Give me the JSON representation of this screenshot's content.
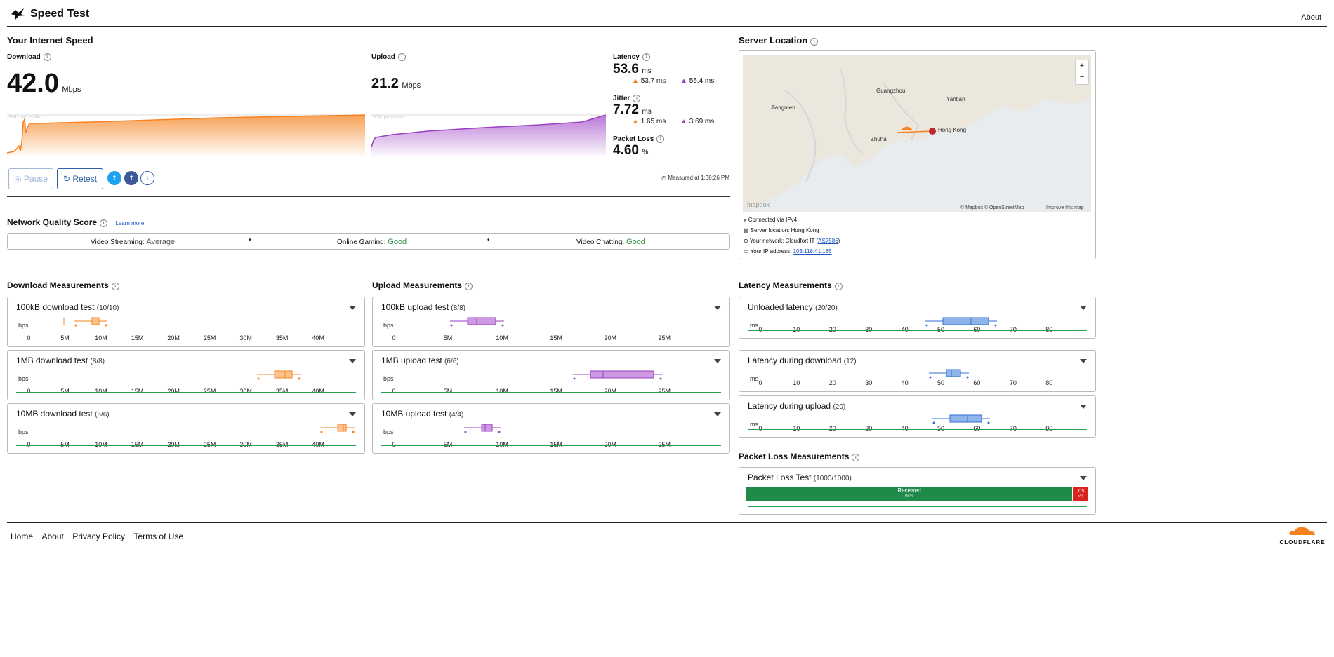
{
  "header": {
    "app_title": "Speed Test",
    "about_link": "About"
  },
  "speed": {
    "section_title": "Your Internet Speed",
    "download_label": "Download",
    "download_value": "42.0",
    "download_unit": "Mbps",
    "upload_label": "Upload",
    "upload_value": "21.2",
    "upload_unit": "Mbps",
    "percentile_label": "90th percentile",
    "latency_label": "Latency",
    "latency_value": "53.6",
    "latency_unit": "ms",
    "latency_down": "53.7 ms",
    "latency_up": "55.4 ms",
    "jitter_label": "Jitter",
    "jitter_value": "7.72",
    "jitter_unit": "ms",
    "jitter_down": "1.65 ms",
    "jitter_up": "3.69 ms",
    "packet_loss_label": "Packet Loss",
    "packet_loss_value": "4.60",
    "packet_loss_unit": "%",
    "measured_at": "Measured at 1:38:26 PM",
    "pause_label": "Pause",
    "retest_label": "Retest",
    "colors": {
      "download": "#f6821f",
      "upload": "#9b3fc4"
    }
  },
  "quality": {
    "title": "Network Quality Score",
    "learn_more": "Learn more",
    "items": [
      {
        "label": "Video Streaming:",
        "value": "Average",
        "color": "#555555"
      },
      {
        "label": "Online Gaming:",
        "value": "Good",
        "color": "#2a8a3e"
      },
      {
        "label": "Video Chatting:",
        "value": "Good",
        "color": "#2a8a3e"
      }
    ]
  },
  "server": {
    "title": "Server Location",
    "map_cities": [
      "Guangzhou",
      "Jiangmen",
      "Yantian",
      "Hong Kong",
      "Zhuhai"
    ],
    "map_credit": "© Mapbox © OpenStreetMap",
    "improve_map": "Improve this map",
    "mapbox_logo": "mapbox",
    "zoom_in": "+",
    "zoom_out": "−",
    "connected": "Connected via IPv4",
    "location": "Server location: Hong Kong",
    "network_prefix": "Your network: Cloudfort IT (",
    "network_asn": "AS7586",
    "network_suffix": ")",
    "ip_prefix": "Your IP address: ",
    "ip_value": "103.118.41.185"
  },
  "download_measurements": {
    "title": "Download Measurements",
    "unit": "bps",
    "ticks": [
      "0",
      "5M",
      "10M",
      "15M",
      "20M",
      "25M",
      "30M",
      "35M",
      "40M"
    ],
    "tests": [
      {
        "label": "100kB download test",
        "count": "(10/10)"
      },
      {
        "label": "1MB download test",
        "count": "(8/8)"
      },
      {
        "label": "10MB download test",
        "count": "(6/6)"
      }
    ]
  },
  "upload_measurements": {
    "title": "Upload Measurements",
    "unit": "bps",
    "ticks": [
      "0",
      "5M",
      "10M",
      "15M",
      "20M",
      "25M"
    ],
    "tests": [
      {
        "label": "100kB upload test",
        "count": "(8/8)"
      },
      {
        "label": "1MB upload test",
        "count": "(6/6)"
      },
      {
        "label": "10MB upload test",
        "count": "(4/4)"
      }
    ]
  },
  "latency_measurements": {
    "title": "Latency Measurements",
    "unit": "ms",
    "ticks": [
      "0",
      "10",
      "20",
      "30",
      "40",
      "50",
      "60",
      "70",
      "80"
    ],
    "tests": [
      {
        "label": "Unloaded latency",
        "count": "(20/20)"
      },
      {
        "label": "Latency during download",
        "count": "(12)"
      },
      {
        "label": "Latency during upload",
        "count": "(20)"
      }
    ]
  },
  "packet_loss": {
    "title": "Packet Loss Measurements",
    "test_label": "Packet Loss Test",
    "test_count": "(1000/1000)",
    "received_label": "Received",
    "received_pct": "95%",
    "lost_label": "Lost",
    "lost_pct": "5%"
  },
  "footer": {
    "links": [
      "Home",
      "About",
      "Privacy Policy",
      "Terms of Use"
    ],
    "brand": "CLOUDFLARE"
  }
}
